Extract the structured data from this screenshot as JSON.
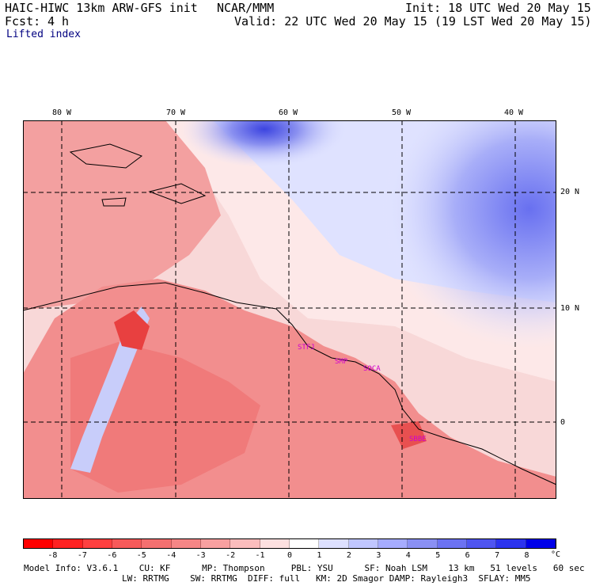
{
  "header": {
    "model": "HAIC-HIWC 13km ARW-GFS init",
    "org": "NCAR/MMM",
    "init": "Init: 18 UTC Wed 20 May 15",
    "fcst_label": "Fcst:",
    "fcst_value": "4 h",
    "valid": "Valid: 22 UTC Wed 20 May 15 (19 LST Wed 20 May 15)",
    "field": "Lifted index"
  },
  "map": {
    "lon_labels": [
      "80 W",
      "70 W",
      "60 W",
      "50 W",
      "40 W"
    ],
    "lat_labels": [
      "20 N",
      "10 N",
      "0"
    ],
    "stations": [
      "STFJ",
      "SMP",
      "SOCA",
      "SBBE"
    ]
  },
  "colorbar": {
    "labels": [
      "-8",
      "-7",
      "-6",
      "-5",
      "-4",
      "-3",
      "-2",
      "-1",
      "0",
      "1",
      "2",
      "3",
      "4",
      "5",
      "6",
      "7",
      "8"
    ],
    "unit": "°C",
    "colors": [
      "#ff0000",
      "#ff2222",
      "#ff4040",
      "#f75a5a",
      "#f47070",
      "#f58686",
      "#f8a0a0",
      "#fbbdbd",
      "#fde0e0",
      "#ffffff",
      "#dde0ff",
      "#c0c6ff",
      "#a6acff",
      "#8a90f4",
      "#6c72f2",
      "#4f55f0",
      "#2c33ee",
      "#0000e8"
    ]
  },
  "model_info": {
    "line1": "Model Info: V3.6.1    CU: KF      MP: Thompson     PBL: YSU      SF: Noah LSM    13 km   51 levels   60 sec",
    "line2": "LW: RRTMG    SW: RRTMG  DIFF: full   KM: 2D Smagor DAMP: Rayleigh3  SFLAY: MM5"
  }
}
